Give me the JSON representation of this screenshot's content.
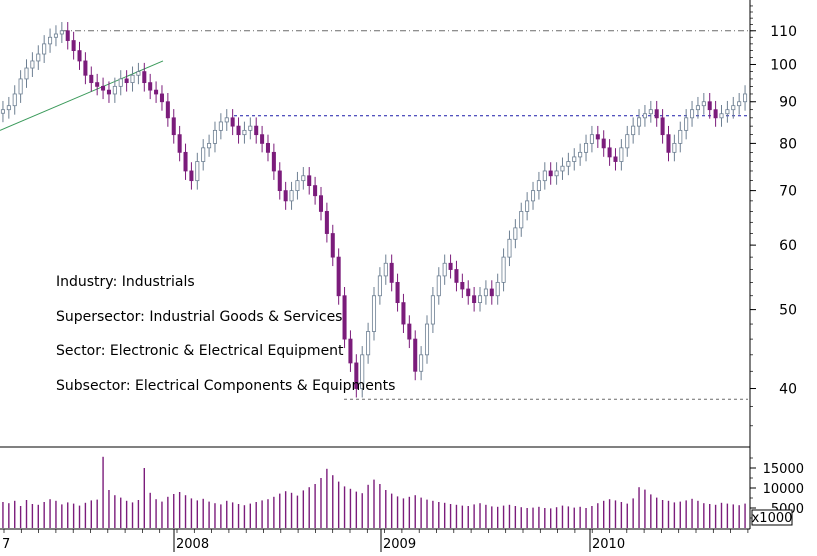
{
  "chart_data": {
    "type": "candlestick",
    "price_axis": {
      "scale": "log",
      "ticks": [
        110,
        100,
        90,
        80,
        70,
        60,
        50,
        40
      ],
      "ylim": [
        34,
        120
      ]
    },
    "volume_axis": {
      "ticks": [
        15000,
        10000,
        5000
      ],
      "multiplier_label": "x1000",
      "ylim": [
        0,
        20000
      ]
    },
    "x_labels": [
      "7",
      "2008",
      "2009",
      "2010"
    ],
    "annotations": [
      "Industry: Industrials",
      "Supersector: Industrial Goods & Services",
      "Sector: Electronic & Electrical Equipment",
      "Subsector: Electrical Components & Equipments"
    ],
    "reference_lines": {
      "resistance_high": 110,
      "support_low": 38.8,
      "breakout": 86.5
    },
    "trendline": {
      "from": 83,
      "to": 101
    },
    "colors": {
      "up_candle": "#6d7f92",
      "down_candle": "#7b1c7b",
      "volume_bar": "#7b1c7b",
      "trendline": "#3a9a5a",
      "breakout_line": "#1a1aa8",
      "dashed_gray": "#6a6a6a"
    },
    "weekly_close": [
      88,
      89,
      92,
      96,
      99,
      101,
      103,
      106,
      108,
      109,
      110,
      107,
      104,
      101,
      97,
      95,
      94,
      93,
      92,
      94,
      96,
      95,
      97,
      98,
      95,
      93,
      92,
      90,
      86,
      82,
      78,
      74,
      72,
      76,
      79,
      80,
      83,
      85,
      86,
      84,
      82,
      83,
      84,
      82,
      80,
      78,
      74,
      70,
      68,
      70,
      72,
      73,
      71,
      69,
      66,
      62,
      58,
      52,
      46,
      43,
      40,
      44,
      47,
      52,
      55,
      57,
      54,
      51,
      48,
      46,
      42,
      44,
      48,
      52,
      55,
      57,
      56,
      54,
      53,
      52,
      51,
      52,
      53,
      52,
      54,
      58,
      61,
      63,
      66,
      68,
      70,
      72,
      74,
      73,
      74,
      75,
      76,
      77,
      78,
      80,
      82,
      81,
      79,
      77,
      76,
      79,
      82,
      84,
      86,
      87,
      88,
      86,
      82,
      78,
      80,
      83,
      86,
      88,
      89,
      90,
      88,
      86,
      87,
      88,
      89,
      90,
      92
    ],
    "weekly_volume": [
      6500,
      6200,
      6800,
      5500,
      7000,
      6000,
      5800,
      6500,
      7200,
      6800,
      5900,
      6400,
      6100,
      5600,
      6300,
      6900,
      7100,
      17800,
      9500,
      8200,
      7600,
      6800,
      6400,
      7000,
      15000,
      8800,
      7200,
      6600,
      7800,
      8500,
      9000,
      8200,
      7400,
      6900,
      7300,
      6600,
      6200,
      5900,
      6800,
      6400,
      6000,
      5700,
      6100,
      6500,
      6900,
      7200,
      7800,
      8600,
      9200,
      8800,
      8100,
      9400,
      10200,
      11000,
      12500,
      14800,
      13200,
      11600,
      10400,
      9800,
      9100,
      8700,
      10800,
      12100,
      11000,
      9500,
      8600,
      7900,
      7400,
      7800,
      8200,
      7600,
      7100,
      6800,
      6500,
      6300,
      6000,
      5800,
      5600,
      5500,
      5900,
      6200,
      5800,
      5400,
      5300,
      5600,
      5800,
      5500,
      5200,
      5000,
      5100,
      5300,
      5000,
      4900,
      5200,
      5600,
      5400,
      5100,
      5300,
      5000,
      5500,
      6200,
      6800,
      7200,
      6900,
      6500,
      6100,
      7400,
      10200,
      9600,
      8400,
      7600,
      7000,
      6800,
      6400,
      6600,
      6900,
      7300,
      6800,
      6200,
      6000,
      5800,
      6300,
      6100,
      5900,
      5700,
      6100
    ]
  }
}
